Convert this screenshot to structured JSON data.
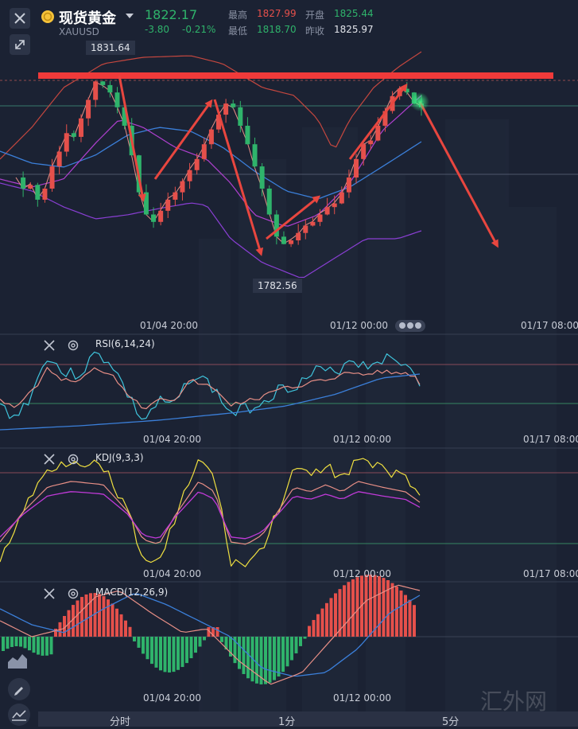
{
  "header": {
    "title": "现货黄金",
    "symbol": "XAUUSD",
    "price": "1822.17",
    "change": "-3.80",
    "change_pct": "-0.21%",
    "high_label": "最高",
    "high": "1827.99",
    "open_label": "开盘",
    "open": "1825.44",
    "low_label": "最低",
    "low": "1818.70",
    "prev_close_label": "昨收",
    "prev_close": "1825.97",
    "colors": {
      "up": "#e5504b",
      "down": "#2fb36b",
      "accent": "#f5c23a"
    }
  },
  "main_chart": {
    "max_label": "1831.64",
    "min_label": "1782.56",
    "x_labels": [
      "01/04 20:00",
      "01/12 00:00",
      "01/17 08:00"
    ]
  },
  "indicators": [
    {
      "id": "rsi",
      "label": "RSI(6,14,24)",
      "x_labels": [
        "01/04 20:00",
        "01/12 00:00",
        "01/17 08:00"
      ]
    },
    {
      "id": "kdj",
      "label": "KDJ(9,3,3)",
      "x_labels": [
        "01/04 20:00",
        "01/12 00:00",
        "01/17 08:00"
      ]
    },
    {
      "id": "macd",
      "label": "MACD(12,26,9)",
      "x_labels": [
        "01/04 20:00",
        "01/12 00:00"
      ]
    }
  ],
  "bottom_tabs": [
    "分时",
    "1分",
    "5分"
  ],
  "watermark": "汇外网",
  "chart_data": {
    "type": "candlestick",
    "symbol": "XAUUSD",
    "x_ticks": [
      "01/04 20:00",
      "01/12 00:00",
      "01/17 08:00"
    ],
    "price_high_marker": 1831.64,
    "price_low_marker": 1782.56,
    "last_price": 1822.17,
    "series_shape": {
      "close": [
        1803,
        1800,
        1801,
        1797,
        1800,
        1806,
        1810,
        1815,
        1814,
        1819,
        1824,
        1829,
        1828,
        1826,
        1822,
        1817,
        1809,
        1799,
        1793,
        1791,
        1794,
        1797,
        1799,
        1802,
        1805,
        1808,
        1812,
        1816,
        1820,
        1823,
        1822,
        1817,
        1812,
        1806,
        1800,
        1793,
        1787,
        1785,
        1786,
        1788,
        1790,
        1791,
        1793,
        1795,
        1796,
        1799,
        1803,
        1808,
        1812,
        1813,
        1817,
        1821,
        1825,
        1827,
        1826,
        1823,
        1822
      ]
    },
    "indicators": [
      "RSI(6,14,24)",
      "KDJ(9,3,3)",
      "MACD(12,26,9)"
    ]
  }
}
